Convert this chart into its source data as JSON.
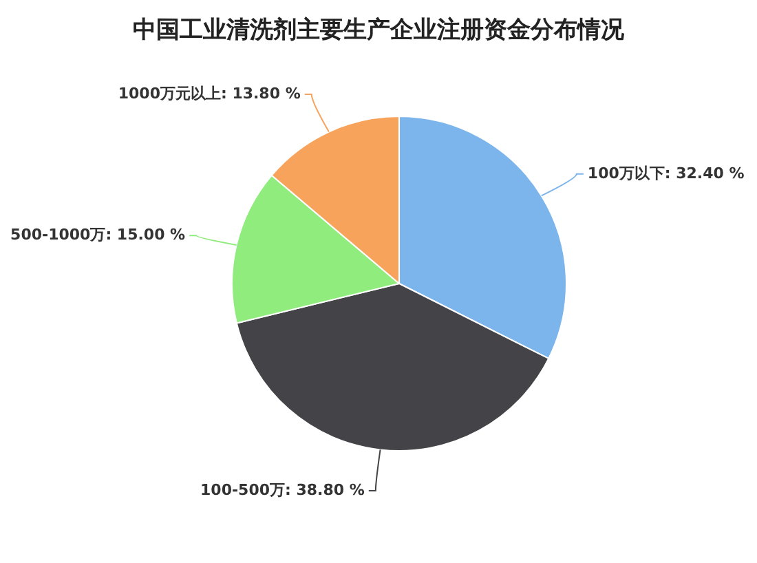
{
  "chart_data": {
    "type": "pie",
    "title": "中国工业清洗剂主要生产企业注册资金分布情况",
    "categories": [
      "100万以下",
      "100-500万",
      "500-1000万",
      "1000万元以上"
    ],
    "values": [
      32.4,
      38.8,
      15.0,
      13.8
    ],
    "colors": [
      "#7cb5ec",
      "#434348",
      "#90ed7d",
      "#f7a35c"
    ],
    "value_labels": [
      "32.40 %",
      "38.80 %",
      "15.00 %",
      "13.80 %"
    ]
  }
}
